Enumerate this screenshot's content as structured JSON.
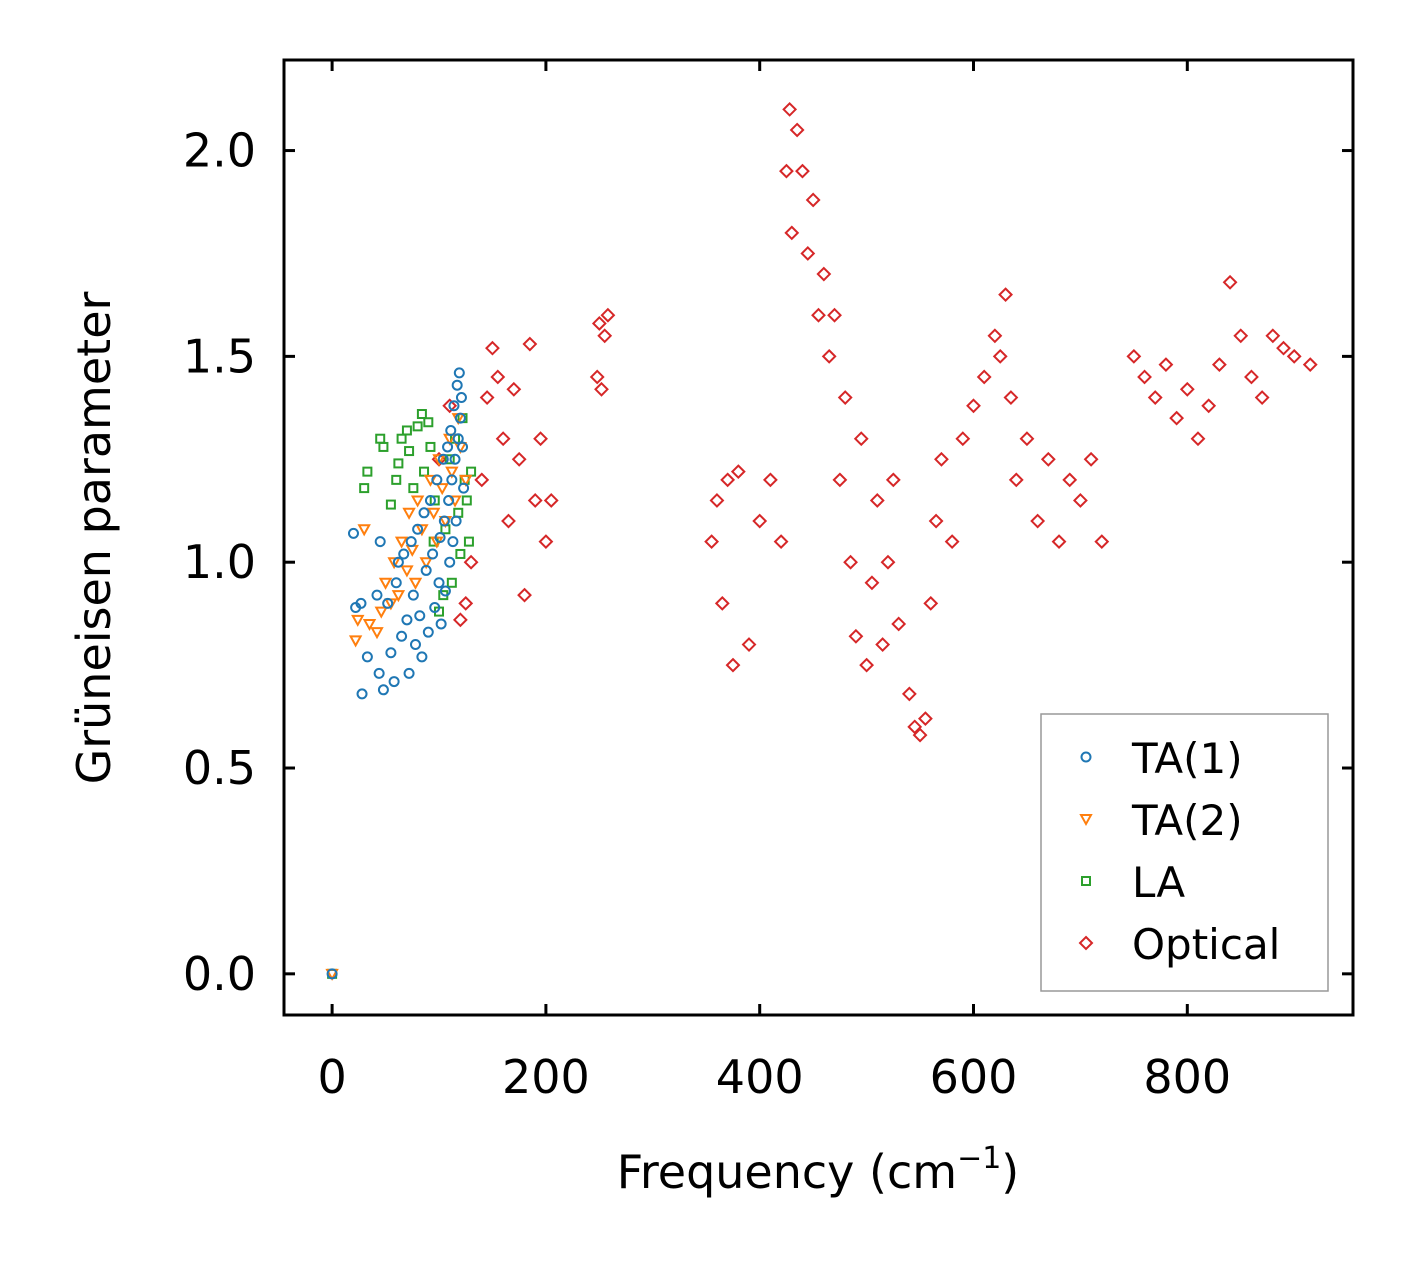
{
  "chart_data": {
    "type": "scatter",
    "title": "",
    "xlabel": "Frequency (cm",
    "xlabel_sup": "−1",
    "xlabel_end": ")",
    "ylabel": "Grüneisen parameter",
    "xlim": [
      -45,
      955
    ],
    "ylim": [
      -0.1,
      2.22
    ],
    "xticks": [
      0,
      200,
      400,
      600,
      800
    ],
    "xtick_labels": [
      "0",
      "200",
      "400",
      "600",
      "800"
    ],
    "yticks": [
      0.0,
      0.5,
      1.0,
      1.5,
      2.0
    ],
    "ytick_labels": [
      "0.0",
      "0.5",
      "1.0",
      "1.5",
      "2.0"
    ],
    "grid": false,
    "legend_position": "bottom-right",
    "series": [
      {
        "name": "TA(1)",
        "marker": "circle",
        "color": "#1f77b4",
        "points": [
          [
            0,
            0
          ],
          [
            20,
            1.07
          ],
          [
            22,
            0.89
          ],
          [
            27,
            0.9
          ],
          [
            28,
            0.68
          ],
          [
            33,
            0.77
          ],
          [
            42,
            0.92
          ],
          [
            44,
            0.73
          ],
          [
            45,
            1.05
          ],
          [
            48,
            0.69
          ],
          [
            52,
            0.9
          ],
          [
            55,
            0.78
          ],
          [
            58,
            0.71
          ],
          [
            60,
            0.95
          ],
          [
            62,
            1.0
          ],
          [
            65,
            0.82
          ],
          [
            67,
            1.02
          ],
          [
            70,
            0.86
          ],
          [
            72,
            0.73
          ],
          [
            74,
            1.05
          ],
          [
            76,
            0.92
          ],
          [
            78,
            0.8
          ],
          [
            80,
            1.08
          ],
          [
            82,
            0.87
          ],
          [
            84,
            0.77
          ],
          [
            86,
            1.12
          ],
          [
            88,
            0.98
          ],
          [
            90,
            0.83
          ],
          [
            92,
            1.15
          ],
          [
            94,
            1.02
          ],
          [
            96,
            0.89
          ],
          [
            98,
            1.2
          ],
          [
            100,
            0.95
          ],
          [
            101,
            1.06
          ],
          [
            102,
            0.85
          ],
          [
            104,
            1.25
          ],
          [
            105,
            1.1
          ],
          [
            106,
            0.93
          ],
          [
            108,
            1.28
          ],
          [
            109,
            1.15
          ],
          [
            110,
            1.0
          ],
          [
            111,
            1.32
          ],
          [
            112,
            1.2
          ],
          [
            113,
            1.05
          ],
          [
            114,
            1.38
          ],
          [
            115,
            1.25
          ],
          [
            116,
            1.1
          ],
          [
            117,
            1.43
          ],
          [
            118,
            1.3
          ],
          [
            119,
            1.46
          ],
          [
            120,
            1.35
          ],
          [
            121,
            1.4
          ],
          [
            122,
            1.28
          ],
          [
            123,
            1.18
          ]
        ]
      },
      {
        "name": "TA(2)",
        "marker": "triangle-down",
        "color": "#ff7f0e",
        "points": [
          [
            0,
            0
          ],
          [
            22,
            0.81
          ],
          [
            24,
            0.86
          ],
          [
            30,
            1.08
          ],
          [
            35,
            0.85
          ],
          [
            42,
            0.83
          ],
          [
            46,
            0.88
          ],
          [
            50,
            0.95
          ],
          [
            55,
            0.9
          ],
          [
            58,
            1.0
          ],
          [
            62,
            0.92
          ],
          [
            65,
            1.05
          ],
          [
            70,
            0.98
          ],
          [
            72,
            1.12
          ],
          [
            75,
            1.03
          ],
          [
            78,
            0.95
          ],
          [
            80,
            1.15
          ],
          [
            84,
            1.08
          ],
          [
            88,
            1.0
          ],
          [
            92,
            1.2
          ],
          [
            95,
            1.12
          ],
          [
            98,
            1.05
          ],
          [
            100,
            1.25
          ],
          [
            103,
            1.18
          ],
          [
            106,
            1.1
          ],
          [
            110,
            1.3
          ],
          [
            112,
            1.22
          ],
          [
            115,
            1.15
          ],
          [
            118,
            1.35
          ],
          [
            120,
            1.28
          ],
          [
            125,
            1.2
          ]
        ]
      },
      {
        "name": "LA",
        "marker": "square",
        "color": "#2ca02c",
        "points": [
          [
            0,
            0
          ],
          [
            30,
            1.18
          ],
          [
            33,
            1.22
          ],
          [
            45,
            1.3
          ],
          [
            48,
            1.28
          ],
          [
            55,
            1.14
          ],
          [
            60,
            1.2
          ],
          [
            62,
            1.24
          ],
          [
            65,
            1.3
          ],
          [
            70,
            1.32
          ],
          [
            72,
            1.27
          ],
          [
            76,
            1.18
          ],
          [
            80,
            1.33
          ],
          [
            84,
            1.36
          ],
          [
            86,
            1.22
          ],
          [
            90,
            1.34
          ],
          [
            92,
            1.28
          ],
          [
            95,
            1.05
          ],
          [
            96,
            1.15
          ],
          [
            100,
            0.88
          ],
          [
            104,
            0.92
          ],
          [
            106,
            1.08
          ],
          [
            110,
            1.25
          ],
          [
            112,
            0.95
          ],
          [
            115,
            1.3
          ],
          [
            118,
            1.12
          ],
          [
            120,
            1.02
          ],
          [
            122,
            1.35
          ],
          [
            124,
            1.2
          ],
          [
            126,
            1.15
          ],
          [
            128,
            1.05
          ],
          [
            130,
            1.22
          ]
        ]
      },
      {
        "name": "Optical",
        "marker": "diamond",
        "color": "#d62728",
        "points": [
          [
            100,
            1.25
          ],
          [
            110,
            1.38
          ],
          [
            120,
            0.86
          ],
          [
            125,
            0.9
          ],
          [
            130,
            1.0
          ],
          [
            140,
            1.2
          ],
          [
            145,
            1.4
          ],
          [
            150,
            1.52
          ],
          [
            155,
            1.45
          ],
          [
            160,
            1.3
          ],
          [
            165,
            1.1
          ],
          [
            170,
            1.42
          ],
          [
            175,
            1.25
          ],
          [
            180,
            0.92
          ],
          [
            185,
            1.53
          ],
          [
            190,
            1.15
          ],
          [
            195,
            1.3
          ],
          [
            200,
            1.05
          ],
          [
            205,
            1.15
          ],
          [
            248,
            1.45
          ],
          [
            250,
            1.58
          ],
          [
            252,
            1.42
          ],
          [
            255,
            1.55
          ],
          [
            258,
            1.6
          ],
          [
            355,
            1.05
          ],
          [
            360,
            1.15
          ],
          [
            365,
            0.9
          ],
          [
            370,
            1.2
          ],
          [
            375,
            0.75
          ],
          [
            380,
            1.22
          ],
          [
            390,
            0.8
          ],
          [
            400,
            1.1
          ],
          [
            410,
            1.2
          ],
          [
            420,
            1.05
          ],
          [
            425,
            1.95
          ],
          [
            428,
            2.1
          ],
          [
            430,
            1.8
          ],
          [
            435,
            2.05
          ],
          [
            440,
            1.95
          ],
          [
            445,
            1.75
          ],
          [
            450,
            1.88
          ],
          [
            455,
            1.6
          ],
          [
            460,
            1.7
          ],
          [
            465,
            1.5
          ],
          [
            470,
            1.6
          ],
          [
            475,
            1.2
          ],
          [
            480,
            1.4
          ],
          [
            485,
            1.0
          ],
          [
            490,
            0.82
          ],
          [
            495,
            1.3
          ],
          [
            500,
            0.75
          ],
          [
            505,
            0.95
          ],
          [
            510,
            1.15
          ],
          [
            515,
            0.8
          ],
          [
            520,
            1.0
          ],
          [
            525,
            1.2
          ],
          [
            530,
            0.85
          ],
          [
            540,
            0.68
          ],
          [
            545,
            0.6
          ],
          [
            550,
            0.58
          ],
          [
            555,
            0.62
          ],
          [
            560,
            0.9
          ],
          [
            565,
            1.1
          ],
          [
            570,
            1.25
          ],
          [
            580,
            1.05
          ],
          [
            590,
            1.3
          ],
          [
            600,
            1.38
          ],
          [
            610,
            1.45
          ],
          [
            620,
            1.55
          ],
          [
            625,
            1.5
          ],
          [
            630,
            1.65
          ],
          [
            635,
            1.4
          ],
          [
            640,
            1.2
          ],
          [
            650,
            1.3
          ],
          [
            660,
            1.1
          ],
          [
            670,
            1.25
          ],
          [
            680,
            1.05
          ],
          [
            690,
            1.2
          ],
          [
            700,
            1.15
          ],
          [
            710,
            1.25
          ],
          [
            720,
            1.05
          ],
          [
            750,
            1.5
          ],
          [
            760,
            1.45
          ],
          [
            770,
            1.4
          ],
          [
            780,
            1.48
          ],
          [
            790,
            1.35
          ],
          [
            800,
            1.42
          ],
          [
            810,
            1.3
          ],
          [
            820,
            1.38
          ],
          [
            830,
            1.48
          ],
          [
            840,
            1.68
          ],
          [
            850,
            1.55
          ],
          [
            860,
            1.45
          ],
          [
            870,
            1.4
          ],
          [
            880,
            1.55
          ],
          [
            890,
            1.52
          ],
          [
            900,
            1.5
          ],
          [
            915,
            1.48
          ]
        ]
      }
    ]
  },
  "legend": {
    "items": [
      {
        "label": "TA(1)"
      },
      {
        "label": "TA(2)"
      },
      {
        "label": "LA"
      },
      {
        "label": "Optical"
      }
    ]
  }
}
